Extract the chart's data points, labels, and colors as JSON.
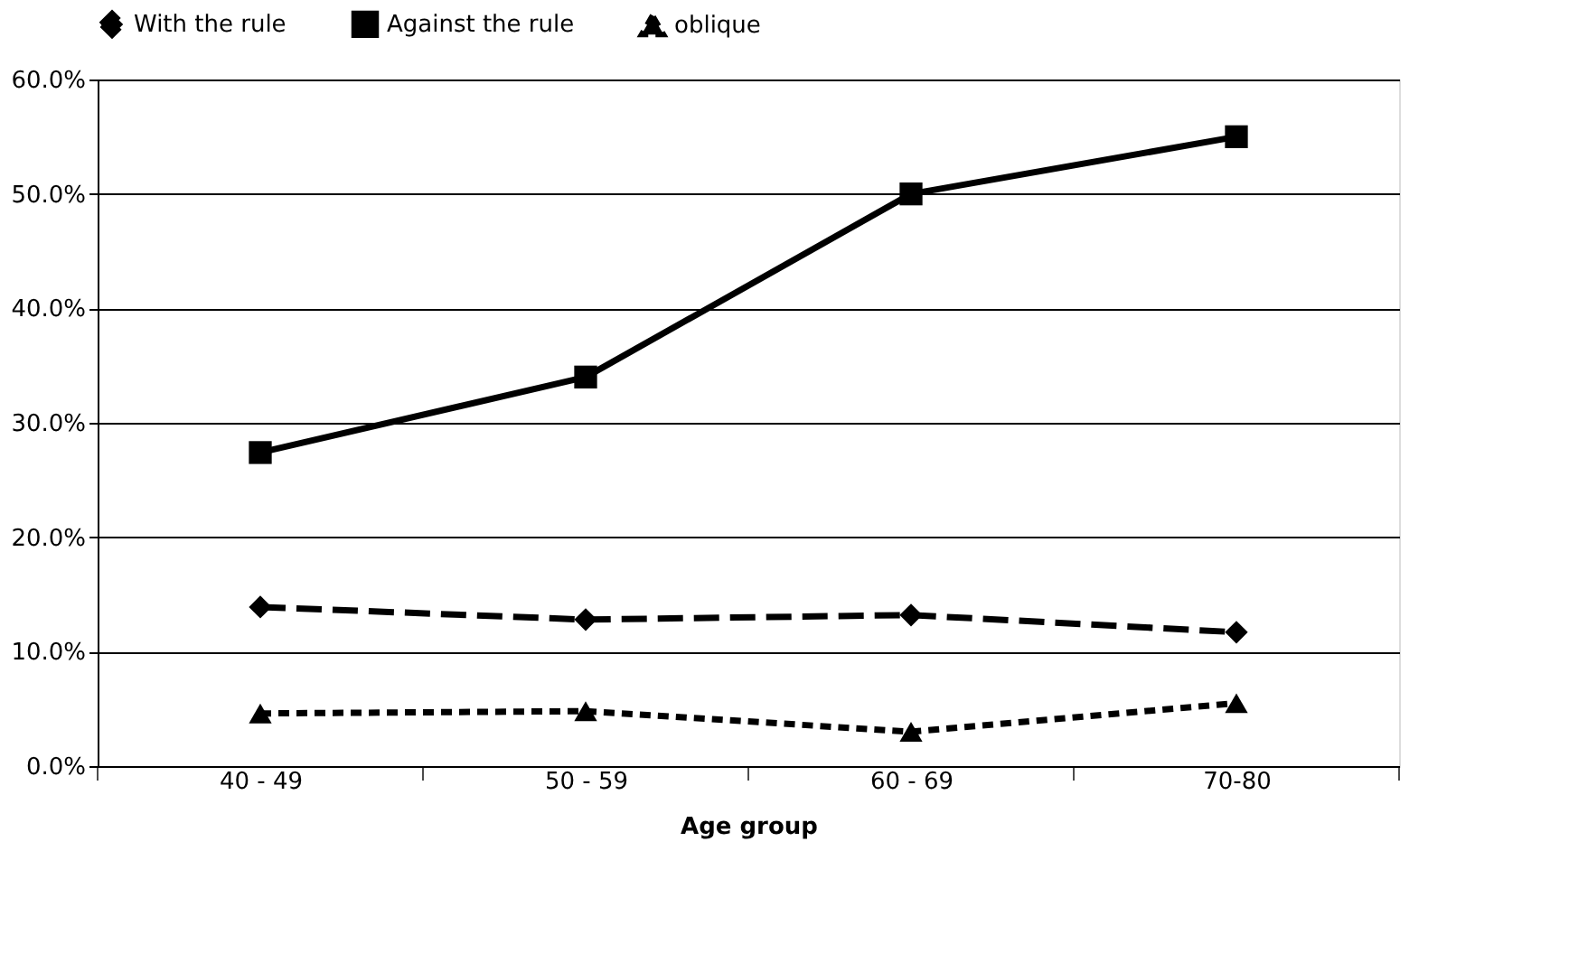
{
  "chart_data": {
    "type": "line",
    "xlabel": "Age group",
    "categories": [
      "40 - 49",
      "50 - 59",
      "60 - 69",
      "70-80"
    ],
    "series": [
      {
        "name": "With the rule",
        "color": "#000000",
        "marker": "diamond",
        "line_style": "dashed",
        "values": [
          13.9,
          12.8,
          13.2,
          11.7
        ]
      },
      {
        "name": "Against the rule",
        "color": "#000000",
        "marker": "square",
        "line_style": "solid",
        "values": [
          27.4,
          34.0,
          50.0,
          55.0
        ]
      },
      {
        "name": "oblique",
        "color": "#000000",
        "marker": "triangle",
        "line_style": "dotted",
        "values": [
          4.6,
          4.8,
          3.0,
          5.5
        ]
      }
    ],
    "ylim": [
      0,
      60
    ],
    "yticks": [
      {
        "value": 0,
        "label": "0.0%"
      },
      {
        "value": 10,
        "label": "10.0%"
      },
      {
        "value": 20,
        "label": "20.0%"
      },
      {
        "value": 30,
        "label": "30.0%"
      },
      {
        "value": 40,
        "label": "40.0%"
      },
      {
        "value": 50,
        "label": "50.0%"
      },
      {
        "value": 60,
        "label": "60.0%"
      }
    ],
    "grid": "y",
    "legend": "top"
  }
}
